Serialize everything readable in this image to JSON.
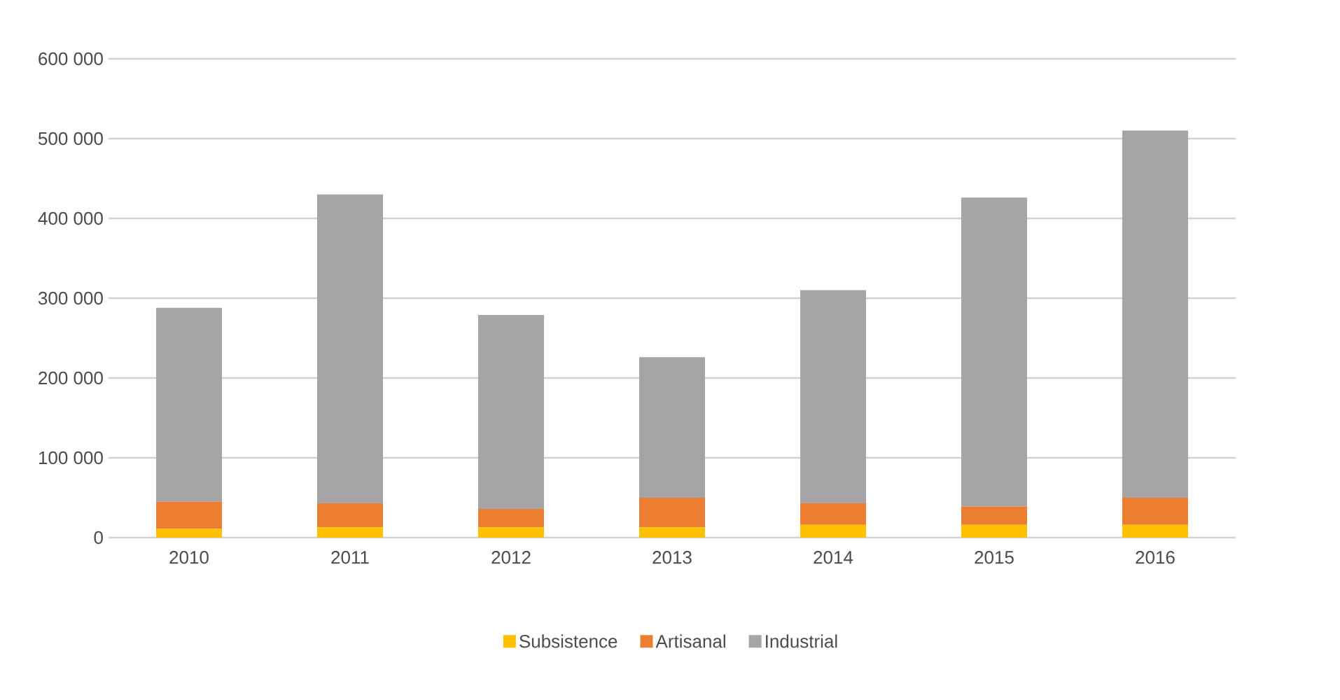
{
  "chart_data": {
    "type": "bar",
    "stacked": true,
    "categories": [
      "2010",
      "2011",
      "2012",
      "2013",
      "2014",
      "2015",
      "2016"
    ],
    "series": [
      {
        "name": "Subsistence",
        "color": "#ffc000",
        "values": [
          11000,
          13000,
          13000,
          13000,
          16000,
          16000,
          16000
        ]
      },
      {
        "name": "Artisanal",
        "color": "#ed7d31",
        "values": [
          34000,
          30000,
          23000,
          37000,
          27000,
          23000,
          34000
        ]
      },
      {
        "name": "Industrial",
        "color": "#a5a5a5",
        "values": [
          243000,
          387000,
          243000,
          176000,
          267000,
          387000,
          460000
        ]
      }
    ],
    "ylim": [
      0,
      600000
    ],
    "yticks": [
      {
        "value": 0,
        "label": "0"
      },
      {
        "value": 100000,
        "label": "100 000"
      },
      {
        "value": 200000,
        "label": "200 000"
      },
      {
        "value": 300000,
        "label": "300 000"
      },
      {
        "value": 400000,
        "label": "400 000"
      },
      {
        "value": 500000,
        "label": "500 000"
      },
      {
        "value": 600000,
        "label": "600 000"
      }
    ],
    "grid": "y",
    "legend": "bottom"
  }
}
